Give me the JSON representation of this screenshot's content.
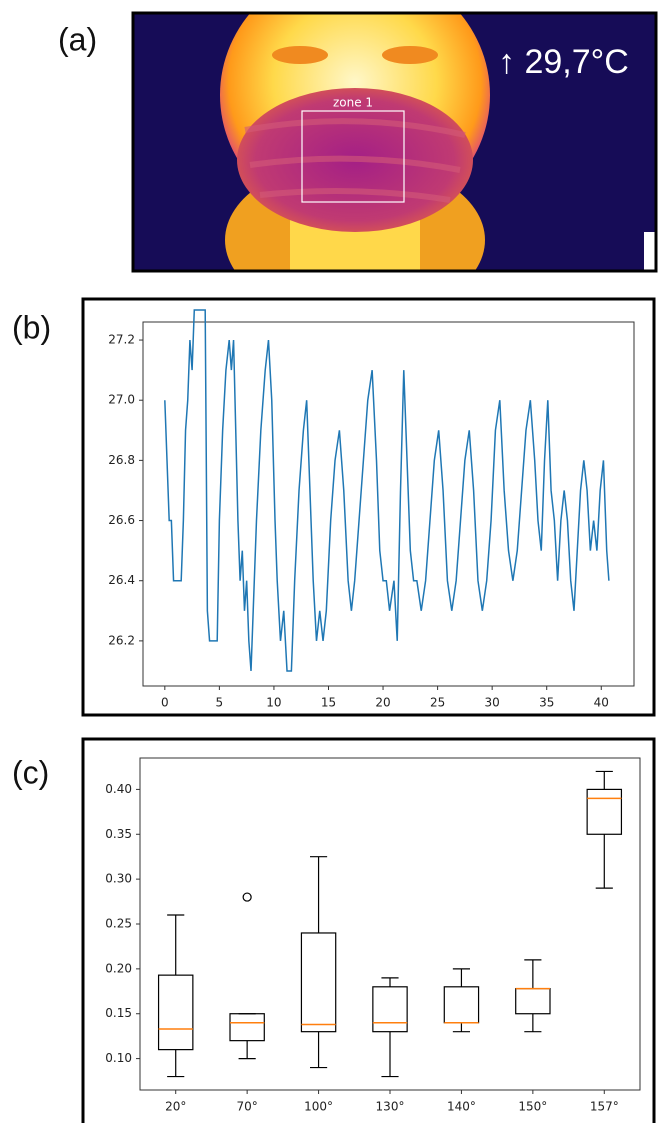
{
  "image": {
    "label": "(a)",
    "zone_label": "zone 1",
    "temperature": "↑ 29,7°C"
  },
  "chart_data": [
    {
      "type": "line",
      "label": "(b)",
      "x": [
        0,
        0.2,
        0.4,
        0.6,
        0.8,
        1.5,
        1.7,
        1.9,
        2.1,
        2.3,
        2.5,
        2.7,
        3.7,
        3.9,
        4.1,
        4.8,
        5.0,
        5.3,
        5.6,
        5.9,
        6.1,
        6.3,
        6.5,
        6.7,
        6.9,
        7.1,
        7.3,
        7.5,
        7.7,
        7.9,
        8.1,
        8.4,
        8.8,
        9.2,
        9.5,
        9.8,
        10.1,
        10.3,
        10.6,
        10.9,
        11.2,
        11.6,
        11.9,
        12.3,
        12.7,
        13.0,
        13.3,
        13.6,
        13.9,
        14.2,
        14.5,
        14.8,
        15.2,
        15.6,
        16.0,
        16.4,
        16.8,
        17.1,
        17.4,
        17.8,
        18.2,
        18.6,
        19.0,
        19.4,
        19.7,
        20.0,
        20.3,
        20.6,
        21.0,
        21.3,
        21.6,
        21.9,
        22.2,
        22.5,
        22.8,
        23.1,
        23.5,
        23.9,
        24.3,
        24.7,
        25.1,
        25.5,
        25.9,
        26.3,
        26.7,
        27.1,
        27.5,
        27.9,
        28.3,
        28.7,
        29.1,
        29.5,
        29.9,
        30.3,
        30.7,
        31.1,
        31.5,
        31.9,
        32.3,
        32.7,
        33.1,
        33.5,
        33.9,
        34.2,
        34.5,
        34.8,
        35.1,
        35.4,
        35.7,
        36.0,
        36.3,
        36.6,
        36.9,
        37.2,
        37.5,
        37.8,
        38.1,
        38.4,
        38.7,
        39.0,
        39.3,
        39.6,
        39.9,
        40.2,
        40.5,
        40.7
      ],
      "series": [
        {
          "color": "#1f77b4",
          "values": [
            27.0,
            26.8,
            26.6,
            26.6,
            26.4,
            26.4,
            26.6,
            26.9,
            27.0,
            27.2,
            27.1,
            27.3,
            27.3,
            26.3,
            26.2,
            26.2,
            26.6,
            26.9,
            27.1,
            27.2,
            27.1,
            27.2,
            26.9,
            26.6,
            26.4,
            26.5,
            26.3,
            26.4,
            26.2,
            26.1,
            26.3,
            26.6,
            26.9,
            27.1,
            27.2,
            27.0,
            26.6,
            26.4,
            26.2,
            26.3,
            26.1,
            26.1,
            26.4,
            26.7,
            26.9,
            27.0,
            26.7,
            26.4,
            26.2,
            26.3,
            26.2,
            26.3,
            26.6,
            26.8,
            26.9,
            26.7,
            26.4,
            26.3,
            26.4,
            26.6,
            26.8,
            27.0,
            27.1,
            26.8,
            26.5,
            26.4,
            26.4,
            26.3,
            26.4,
            26.2,
            26.7,
            27.1,
            26.8,
            26.5,
            26.4,
            26.4,
            26.3,
            26.4,
            26.6,
            26.8,
            26.9,
            26.7,
            26.4,
            26.3,
            26.4,
            26.6,
            26.8,
            26.9,
            26.7,
            26.4,
            26.3,
            26.4,
            26.6,
            26.9,
            27.0,
            26.7,
            26.5,
            26.4,
            26.5,
            26.7,
            26.9,
            27.0,
            26.8,
            26.6,
            26.5,
            26.8,
            27.0,
            26.7,
            26.6,
            26.4,
            26.6,
            26.7,
            26.6,
            26.4,
            26.3,
            26.5,
            26.7,
            26.8,
            26.7,
            26.5,
            26.6,
            26.5,
            26.7,
            26.8,
            26.5,
            26.4
          ]
        }
      ],
      "xlim": [
        -2.0,
        43.0
      ],
      "ylim": [
        26.05,
        27.26
      ],
      "xticks": [
        0,
        5,
        10,
        15,
        20,
        25,
        30,
        35,
        40
      ],
      "yticks": [
        26.2,
        26.4,
        26.6,
        26.8,
        {
          "value": 27,
          "label": "27.0"
        },
        27.2
      ]
    },
    {
      "type": "box",
      "label": "(c)",
      "categories": [
        "20°",
        "70°",
        "100°",
        "130°",
        "140°",
        "150°",
        "157°"
      ],
      "box_color": "#000000",
      "median_color": "#ff7f0e",
      "boxes": [
        {
          "min": 0.08,
          "q1": 0.11,
          "median": 0.133,
          "q3": 0.193,
          "max": 0.26,
          "outliers": []
        },
        {
          "min": 0.1,
          "q1": 0.12,
          "median": 0.14,
          "q3": 0.15,
          "max": 0.15,
          "outliers": [
            0.28
          ]
        },
        {
          "min": 0.09,
          "q1": 0.13,
          "median": 0.138,
          "q3": 0.24,
          "max": 0.325,
          "outliers": []
        },
        {
          "min": 0.08,
          "q1": 0.13,
          "median": 0.14,
          "q3": 0.18,
          "max": 0.19,
          "outliers": []
        },
        {
          "min": 0.13,
          "q1": 0.14,
          "median": 0.14,
          "q3": 0.18,
          "max": 0.2,
          "outliers": []
        },
        {
          "min": 0.13,
          "q1": 0.15,
          "median": 0.178,
          "q3": 0.178,
          "max": 0.21,
          "outliers": []
        },
        {
          "min": 0.29,
          "q1": 0.35,
          "median": 0.39,
          "q3": 0.4,
          "max": 0.42,
          "outliers": []
        }
      ],
      "ylim": [
        0.065,
        0.435
      ],
      "yticks": [
        {
          "value": 0.1,
          "label": "0.10"
        },
        0.15,
        {
          "value": 0.2,
          "label": "0.20"
        },
        0.25,
        {
          "value": 0.3,
          "label": "0.30"
        },
        0.35,
        {
          "value": 0.4,
          "label": "0.40"
        }
      ]
    }
  ]
}
